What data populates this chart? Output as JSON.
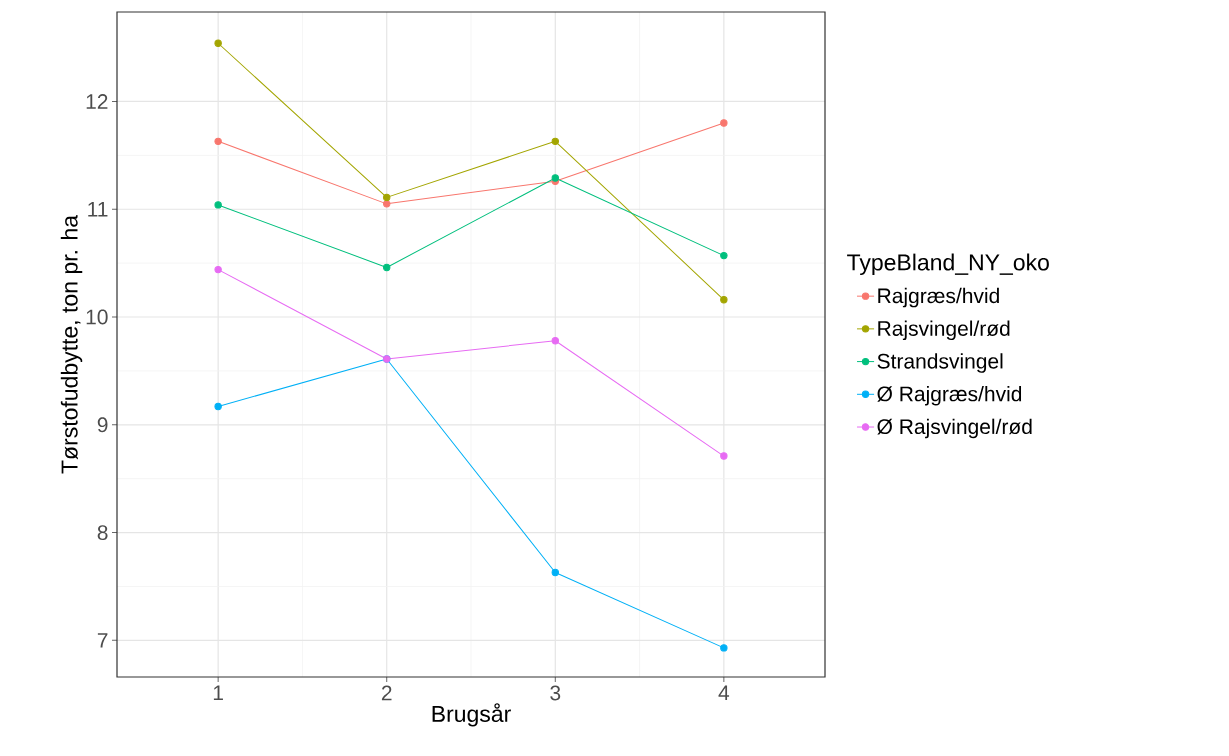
{
  "chart_data": {
    "type": "line",
    "xlabel": "Brugsår",
    "ylabel": "Tørstofudbytte, ton pr. ha",
    "legend_title": "TypeBland_NY_oko",
    "x": [
      1,
      2,
      3,
      4
    ],
    "xlim": [
      0.4,
      4.6
    ],
    "xticks": [
      1,
      2,
      3,
      4
    ],
    "ylim": [
      6.66,
      12.83
    ],
    "yticks": [
      7,
      8,
      9,
      10,
      11,
      12
    ],
    "grid": true,
    "legend": "right",
    "marker": "circle",
    "line_style": "solid",
    "series": [
      {
        "name": "Rajgræs/hvid",
        "color": "#f8766d",
        "values": [
          11.63,
          11.05,
          11.26,
          11.8
        ]
      },
      {
        "name": "Rajsvingel/rød",
        "color": "#a3a500",
        "values": [
          12.54,
          11.11,
          11.63,
          10.16
        ]
      },
      {
        "name": "Strandsvingel",
        "color": "#00bf7d",
        "values": [
          11.04,
          10.46,
          11.29,
          10.57
        ]
      },
      {
        "name": "Ø Rajgræs/hvid",
        "color": "#00b0f6",
        "values": [
          9.17,
          9.61,
          7.63,
          6.93
        ]
      },
      {
        "name": "Ø Rajsvingel/rød",
        "color": "#e76bf3",
        "values": [
          10.44,
          9.61,
          9.78,
          8.71
        ]
      }
    ]
  }
}
